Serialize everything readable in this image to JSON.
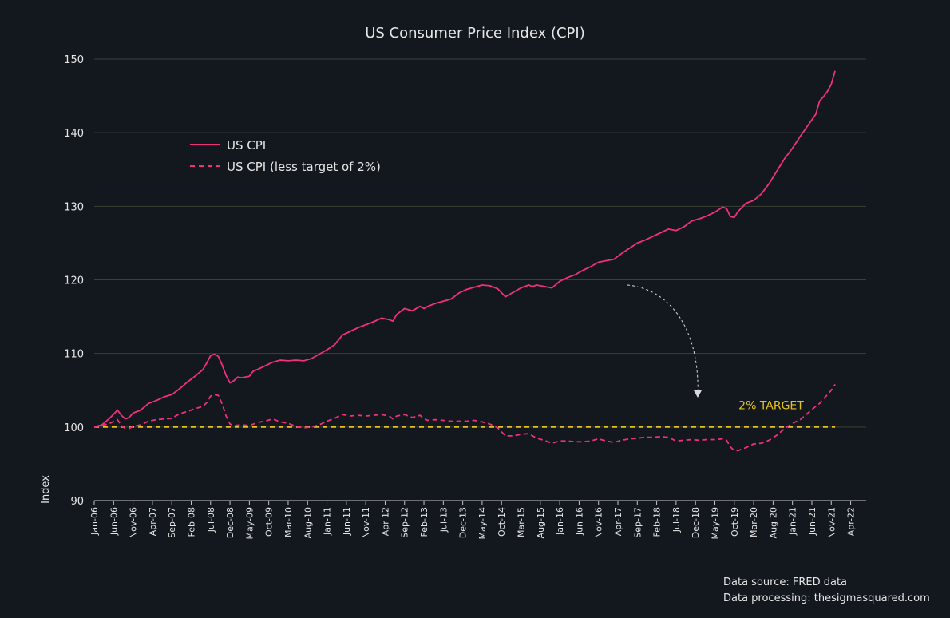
{
  "chart_data": {
    "type": "line",
    "title": "US Consumer Price Index (CPI)",
    "xlabel": "",
    "ylabel": "Index",
    "ylim": [
      90,
      150
    ],
    "yticks": [
      90,
      100,
      110,
      120,
      130,
      140,
      150
    ],
    "grid": true,
    "legend_position": "top-left",
    "x_tick_labels": [
      "Jan-06",
      "Jun-06",
      "Nov-06",
      "Apr-07",
      "Sep-07",
      "Feb-08",
      "Jul-08",
      "Dec-08",
      "May-09",
      "Oct-09",
      "Mar-10",
      "Aug-10",
      "Jan-11",
      "Jun-11",
      "Nov-11",
      "Apr-12",
      "Sep-12",
      "Feb-13",
      "Jul-13",
      "Dec-13",
      "May-14",
      "Oct-14",
      "Mar-15",
      "Aug-15",
      "Jan-16",
      "Jun-16",
      "Nov-16",
      "Apr-17",
      "Sep-17",
      "Feb-18",
      "Jul-18",
      "Dec-18",
      "May-19",
      "Oct-19",
      "Mar-20",
      "Aug-20",
      "Jan-21",
      "Jun-21",
      "Nov-21",
      "Apr-22"
    ],
    "x_month_index_of_first_tick": 0,
    "x_tick_step_months": 5,
    "x_total_months": 199,
    "series": [
      {
        "name": "US CPI",
        "style": "solid",
        "color": "#f0307a",
        "points": [
          [
            0,
            100
          ],
          [
            2,
            100.3
          ],
          [
            4,
            101.2
          ],
          [
            6,
            102.3
          ],
          [
            7,
            101.6
          ],
          [
            8,
            101.1
          ],
          [
            9,
            101.3
          ],
          [
            10,
            101.9
          ],
          [
            12,
            102.3
          ],
          [
            14,
            103.2
          ],
          [
            16,
            103.6
          ],
          [
            18,
            104.1
          ],
          [
            20,
            104.4
          ],
          [
            22,
            105.2
          ],
          [
            24,
            106.1
          ],
          [
            26,
            106.9
          ],
          [
            28,
            107.8
          ],
          [
            29,
            108.7
          ],
          [
            30,
            109.7
          ],
          [
            31,
            109.9
          ],
          [
            32,
            109.6
          ],
          [
            33,
            108.4
          ],
          [
            34,
            107.0
          ],
          [
            35,
            106.0
          ],
          [
            36,
            106.3
          ],
          [
            37,
            106.8
          ],
          [
            38,
            106.7
          ],
          [
            40,
            106.9
          ],
          [
            41,
            107.6
          ],
          [
            42,
            107.8
          ],
          [
            44,
            108.3
          ],
          [
            46,
            108.8
          ],
          [
            48,
            109.1
          ],
          [
            50,
            109.0
          ],
          [
            52,
            109.1
          ],
          [
            54,
            109.0
          ],
          [
            56,
            109.3
          ],
          [
            58,
            109.9
          ],
          [
            60,
            110.5
          ],
          [
            62,
            111.2
          ],
          [
            64,
            112.5
          ],
          [
            66,
            113.0
          ],
          [
            68,
            113.5
          ],
          [
            70,
            113.9
          ],
          [
            72,
            114.3
          ],
          [
            74,
            114.8
          ],
          [
            76,
            114.6
          ],
          [
            77,
            114.4
          ],
          [
            78,
            115.3
          ],
          [
            80,
            116.1
          ],
          [
            82,
            115.8
          ],
          [
            84,
            116.4
          ],
          [
            85,
            116.1
          ],
          [
            86,
            116.4
          ],
          [
            88,
            116.8
          ],
          [
            90,
            117.1
          ],
          [
            92,
            117.4
          ],
          [
            94,
            118.2
          ],
          [
            96,
            118.7
          ],
          [
            98,
            119.0
          ],
          [
            100,
            119.3
          ],
          [
            102,
            119.2
          ],
          [
            104,
            118.8
          ],
          [
            106,
            117.7
          ],
          [
            108,
            118.3
          ],
          [
            110,
            118.9
          ],
          [
            112,
            119.3
          ],
          [
            113,
            119.1
          ],
          [
            114,
            119.3
          ],
          [
            116,
            119.1
          ],
          [
            118,
            118.9
          ],
          [
            120,
            119.8
          ],
          [
            122,
            120.3
          ],
          [
            124,
            120.7
          ],
          [
            126,
            121.3
          ],
          [
            128,
            121.8
          ],
          [
            130,
            122.4
          ],
          [
            132,
            122.6
          ],
          [
            134,
            122.8
          ],
          [
            136,
            123.6
          ],
          [
            138,
            124.3
          ],
          [
            140,
            125.0
          ],
          [
            142,
            125.4
          ],
          [
            144,
            125.9
          ],
          [
            146,
            126.4
          ],
          [
            148,
            126.9
          ],
          [
            150,
            126.7
          ],
          [
            152,
            127.2
          ],
          [
            154,
            128.0
          ],
          [
            156,
            128.3
          ],
          [
            158,
            128.7
          ],
          [
            160,
            129.2
          ],
          [
            162,
            129.9
          ],
          [
            163,
            129.7
          ],
          [
            164,
            128.6
          ],
          [
            165,
            128.5
          ],
          [
            166,
            129.3
          ],
          [
            168,
            130.4
          ],
          [
            170,
            130.8
          ],
          [
            172,
            131.7
          ],
          [
            174,
            133.1
          ],
          [
            176,
            134.8
          ],
          [
            178,
            136.5
          ],
          [
            180,
            137.9
          ],
          [
            182,
            139.5
          ],
          [
            184,
            141.0
          ],
          [
            186,
            142.5
          ],
          [
            187,
            144.3
          ],
          [
            188,
            144.9
          ],
          [
            189,
            145.6
          ],
          [
            190,
            146.6
          ],
          [
            191,
            148.4
          ]
        ]
      },
      {
        "name": "US CPI (less target of 2%)",
        "style": "dashed",
        "color": "#f0307a",
        "points": [
          [
            0,
            100
          ],
          [
            2,
            100.2
          ],
          [
            4,
            100.5
          ],
          [
            6,
            101.0
          ],
          [
            7,
            100.2
          ],
          [
            8,
            99.8
          ],
          [
            9,
            99.8
          ],
          [
            10,
            100.1
          ],
          [
            12,
            100.3
          ],
          [
            14,
            100.8
          ],
          [
            16,
            101.0
          ],
          [
            18,
            101.1
          ],
          [
            20,
            101.2
          ],
          [
            22,
            101.8
          ],
          [
            24,
            102.1
          ],
          [
            26,
            102.5
          ],
          [
            28,
            102.8
          ],
          [
            29,
            103.3
          ],
          [
            30,
            104.2
          ],
          [
            31,
            104.4
          ],
          [
            32,
            104.3
          ],
          [
            33,
            103.1
          ],
          [
            34,
            101.5
          ],
          [
            35,
            100.4
          ],
          [
            36,
            100.2
          ],
          [
            38,
            100.3
          ],
          [
            40,
            100.2
          ],
          [
            42,
            100.6
          ],
          [
            44,
            100.8
          ],
          [
            46,
            101.1
          ],
          [
            48,
            100.7
          ],
          [
            50,
            100.5
          ],
          [
            52,
            100.1
          ],
          [
            54,
            99.9
          ],
          [
            56,
            100.0
          ],
          [
            58,
            100.3
          ],
          [
            60,
            100.8
          ],
          [
            62,
            101.2
          ],
          [
            64,
            101.7
          ],
          [
            66,
            101.5
          ],
          [
            68,
            101.6
          ],
          [
            70,
            101.5
          ],
          [
            72,
            101.6
          ],
          [
            74,
            101.7
          ],
          [
            76,
            101.5
          ],
          [
            77,
            101.1
          ],
          [
            78,
            101.5
          ],
          [
            80,
            101.7
          ],
          [
            82,
            101.3
          ],
          [
            84,
            101.6
          ],
          [
            85,
            101.1
          ],
          [
            86,
            100.9
          ],
          [
            88,
            101.0
          ],
          [
            90,
            100.9
          ],
          [
            92,
            100.8
          ],
          [
            94,
            100.8
          ],
          [
            96,
            100.8
          ],
          [
            98,
            100.9
          ],
          [
            100,
            100.7
          ],
          [
            102,
            100.4
          ],
          [
            104,
            99.9
          ],
          [
            106,
            98.8
          ],
          [
            108,
            98.8
          ],
          [
            110,
            99.0
          ],
          [
            112,
            99.1
          ],
          [
            113,
            98.8
          ],
          [
            114,
            98.5
          ],
          [
            116,
            98.2
          ],
          [
            118,
            97.8
          ],
          [
            120,
            98.1
          ],
          [
            122,
            98.1
          ],
          [
            124,
            98.0
          ],
          [
            126,
            98.0
          ],
          [
            128,
            98.1
          ],
          [
            130,
            98.4
          ],
          [
            132,
            98.1
          ],
          [
            134,
            97.9
          ],
          [
            136,
            98.2
          ],
          [
            138,
            98.4
          ],
          [
            140,
            98.5
          ],
          [
            142,
            98.6
          ],
          [
            144,
            98.6
          ],
          [
            146,
            98.7
          ],
          [
            148,
            98.6
          ],
          [
            150,
            98.1
          ],
          [
            152,
            98.2
          ],
          [
            154,
            98.3
          ],
          [
            156,
            98.2
          ],
          [
            158,
            98.3
          ],
          [
            160,
            98.3
          ],
          [
            162,
            98.4
          ],
          [
            163,
            98.2
          ],
          [
            164,
            97.3
          ],
          [
            165,
            96.8
          ],
          [
            166,
            96.8
          ],
          [
            168,
            97.2
          ],
          [
            170,
            97.7
          ],
          [
            172,
            97.8
          ],
          [
            174,
            98.2
          ],
          [
            176,
            98.9
          ],
          [
            178,
            99.8
          ],
          [
            180,
            100.5
          ],
          [
            182,
            101.0
          ],
          [
            184,
            101.9
          ],
          [
            186,
            102.8
          ],
          [
            187,
            103.2
          ],
          [
            188,
            103.8
          ],
          [
            189,
            104.4
          ],
          [
            190,
            105.0
          ],
          [
            191,
            105.8
          ]
        ]
      },
      {
        "name": "2% TARGET",
        "style": "dashed",
        "color": "#e5c025",
        "points": [
          [
            0,
            100
          ],
          [
            191,
            100
          ]
        ]
      }
    ],
    "annotations": [
      {
        "text": "2% TARGET",
        "x": 180,
        "y": 102,
        "color": "#e5c025"
      }
    ]
  },
  "footer": {
    "source": "Data source: FRED data",
    "processing": "Data processing: thesigmasquared.com"
  }
}
